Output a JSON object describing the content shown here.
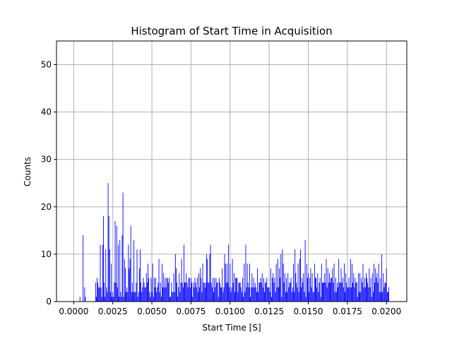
{
  "chart_data": {
    "type": "bar",
    "title": "Histogram of Start Time in Acquisition",
    "xlabel": "Start Time [S]",
    "ylabel": "Counts",
    "xlim": [
      -0.0011,
      0.0213
    ],
    "ylim": [
      0,
      55
    ],
    "xticks": [
      0.0,
      0.0025,
      0.005,
      0.0075,
      0.01,
      0.0125,
      0.015,
      0.0175,
      0.02
    ],
    "xtick_labels": [
      "0.0000",
      "0.0025",
      "0.0050",
      "0.0075",
      "0.0100",
      "0.0125",
      "0.0150",
      "0.0175",
      "0.0200"
    ],
    "yticks": [
      0,
      10,
      20,
      30,
      40,
      50
    ],
    "ytick_labels": [
      "0",
      "10",
      "20",
      "30",
      "40",
      "50"
    ],
    "grid": true,
    "bar_color": "#0000ff",
    "bin_width": 5e-05,
    "x": [],
    "values": []
  }
}
